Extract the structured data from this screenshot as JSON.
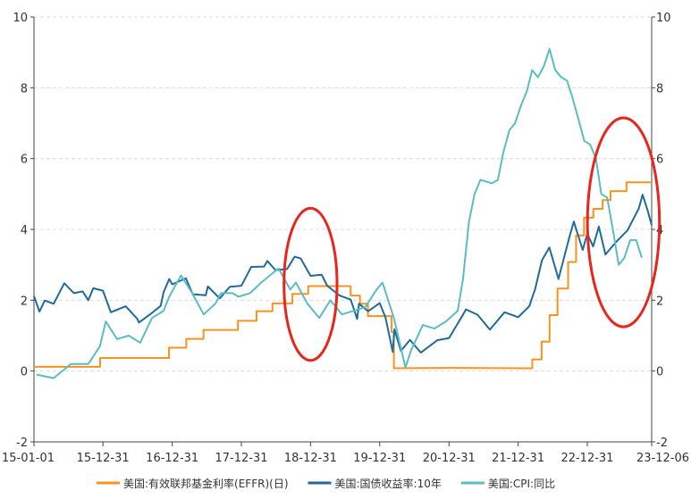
{
  "chart_data": {
    "type": "line",
    "title": "",
    "xlabel": "",
    "ylabel": "",
    "ylim": [
      -2,
      10
    ],
    "y_ticks": [
      -2,
      0,
      2,
      4,
      6,
      8,
      10
    ],
    "y_tick_labels": [
      "-2",
      "0",
      "2",
      "4",
      "6",
      "8",
      "10"
    ],
    "secondary_y_ticks": [
      -2,
      0,
      2,
      4,
      6,
      8,
      10
    ],
    "secondary_y_tick_labels": [
      "-2",
      "0",
      "2",
      "4",
      "6",
      "8",
      "10"
    ],
    "x_tick_labels": [
      "15-01-01",
      "15-12-31",
      "16-12-31",
      "17-12-31",
      "18-12-31",
      "19-12-31",
      "20-12-31",
      "21-12-31",
      "22-12-31",
      "23-12-06"
    ],
    "x_ticks": [
      "2015-01-01",
      "2015-12-31",
      "2016-12-31",
      "2017-12-31",
      "2018-12-31",
      "2019-12-31",
      "2020-12-31",
      "2021-12-31",
      "2022-12-31",
      "2023-12-06"
    ],
    "x_range": [
      "2015-01-01",
      "2023-12-06"
    ],
    "grid": "horizontal dashed",
    "legend_position": "bottom",
    "series": [
      {
        "name": "美国:有效联邦基金利率(EFFR)(日)",
        "color": "#f7931e",
        "style": "step",
        "points": [
          [
            "2015-01-01",
            0.12
          ],
          [
            "2015-12-16",
            0.12
          ],
          [
            "2015-12-16",
            0.37
          ],
          [
            "2016-12-14",
            0.37
          ],
          [
            "2016-12-14",
            0.66
          ],
          [
            "2017-03-15",
            0.66
          ],
          [
            "2017-03-15",
            0.91
          ],
          [
            "2017-06-14",
            0.91
          ],
          [
            "2017-06-14",
            1.16
          ],
          [
            "2017-12-13",
            1.16
          ],
          [
            "2017-12-13",
            1.42
          ],
          [
            "2018-03-21",
            1.42
          ],
          [
            "2018-03-21",
            1.69
          ],
          [
            "2018-06-13",
            1.69
          ],
          [
            "2018-06-13",
            1.91
          ],
          [
            "2018-09-26",
            1.91
          ],
          [
            "2018-09-26",
            2.18
          ],
          [
            "2018-12-19",
            2.18
          ],
          [
            "2018-12-19",
            2.4
          ],
          [
            "2019-07-31",
            2.4
          ],
          [
            "2019-07-31",
            2.13
          ],
          [
            "2019-09-18",
            2.13
          ],
          [
            "2019-09-18",
            1.9
          ],
          [
            "2019-10-30",
            1.9
          ],
          [
            "2019-10-30",
            1.55
          ],
          [
            "2020-03-03",
            1.55
          ],
          [
            "2020-03-03",
            1.1
          ],
          [
            "2020-03-15",
            1.1
          ],
          [
            "2020-03-15",
            0.08
          ],
          [
            "2020-12-31",
            0.09
          ],
          [
            "2021-12-31",
            0.08
          ],
          [
            "2022-03-16",
            0.08
          ],
          [
            "2022-03-16",
            0.33
          ],
          [
            "2022-05-04",
            0.33
          ],
          [
            "2022-05-04",
            0.83
          ],
          [
            "2022-06-15",
            0.83
          ],
          [
            "2022-06-15",
            1.58
          ],
          [
            "2022-07-27",
            1.58
          ],
          [
            "2022-07-27",
            2.33
          ],
          [
            "2022-09-21",
            2.33
          ],
          [
            "2022-09-21",
            3.08
          ],
          [
            "2022-11-02",
            3.08
          ],
          [
            "2022-11-02",
            3.83
          ],
          [
            "2022-12-14",
            3.83
          ],
          [
            "2022-12-14",
            4.33
          ],
          [
            "2023-02-01",
            4.33
          ],
          [
            "2023-02-01",
            4.58
          ],
          [
            "2023-03-22",
            4.58
          ],
          [
            "2023-03-22",
            4.83
          ],
          [
            "2023-05-03",
            4.83
          ],
          [
            "2023-05-03",
            5.08
          ],
          [
            "2023-07-26",
            5.08
          ],
          [
            "2023-07-26",
            5.33
          ],
          [
            "2023-12-06",
            5.33
          ]
        ]
      },
      {
        "name": "美国:国债收益率:10年",
        "color": "#1f6b9a",
        "style": "line",
        "points": [
          [
            "2015-01-01",
            2.12
          ],
          [
            "2015-01-30",
            1.68
          ],
          [
            "2015-02-27",
            1.99
          ],
          [
            "2015-04-15",
            1.9
          ],
          [
            "2015-06-10",
            2.48
          ],
          [
            "2015-07-31",
            2.2
          ],
          [
            "2015-09-15",
            2.25
          ],
          [
            "2015-10-15",
            2.0
          ],
          [
            "2015-11-10",
            2.34
          ],
          [
            "2015-12-31",
            2.27
          ],
          [
            "2016-02-11",
            1.66
          ],
          [
            "2016-04-29",
            1.83
          ],
          [
            "2016-06-30",
            1.47
          ],
          [
            "2016-07-08",
            1.37
          ],
          [
            "2016-08-31",
            1.58
          ],
          [
            "2016-10-31",
            1.84
          ],
          [
            "2016-11-15",
            2.22
          ],
          [
            "2016-12-15",
            2.6
          ],
          [
            "2016-12-31",
            2.45
          ],
          [
            "2017-03-13",
            2.62
          ],
          [
            "2017-04-18",
            2.17
          ],
          [
            "2017-06-26",
            2.14
          ],
          [
            "2017-07-07",
            2.39
          ],
          [
            "2017-09-08",
            2.05
          ],
          [
            "2017-10-31",
            2.38
          ],
          [
            "2017-12-31",
            2.41
          ],
          [
            "2018-02-21",
            2.94
          ],
          [
            "2018-04-30",
            2.95
          ],
          [
            "2018-05-17",
            3.11
          ],
          [
            "2018-06-29",
            2.85
          ],
          [
            "2018-08-29",
            2.88
          ],
          [
            "2018-10-08",
            3.23
          ],
          [
            "2018-11-09",
            3.18
          ],
          [
            "2018-12-31",
            2.69
          ],
          [
            "2019-02-28",
            2.72
          ],
          [
            "2019-03-29",
            2.41
          ],
          [
            "2019-05-31",
            2.14
          ],
          [
            "2019-07-31",
            2.02
          ],
          [
            "2019-09-03",
            1.47
          ],
          [
            "2019-09-13",
            1.9
          ],
          [
            "2019-10-31",
            1.69
          ],
          [
            "2019-12-31",
            1.92
          ],
          [
            "2020-01-31",
            1.51
          ],
          [
            "2020-03-09",
            0.54
          ],
          [
            "2020-03-18",
            1.18
          ],
          [
            "2020-04-21",
            0.57
          ],
          [
            "2020-06-08",
            0.88
          ],
          [
            "2020-08-04",
            0.52
          ],
          [
            "2020-10-30",
            0.87
          ],
          [
            "2020-12-31",
            0.93
          ],
          [
            "2021-02-26",
            1.44
          ],
          [
            "2021-03-31",
            1.74
          ],
          [
            "2021-05-31",
            1.59
          ],
          [
            "2021-08-04",
            1.17
          ],
          [
            "2021-10-20",
            1.66
          ],
          [
            "2021-12-31",
            1.52
          ],
          [
            "2022-02-28",
            1.83
          ],
          [
            "2022-03-31",
            2.32
          ],
          [
            "2022-05-06",
            3.13
          ],
          [
            "2022-06-14",
            3.49
          ],
          [
            "2022-08-01",
            2.6
          ],
          [
            "2022-09-30",
            3.83
          ],
          [
            "2022-10-21",
            4.22
          ],
          [
            "2022-12-07",
            3.42
          ],
          [
            "2022-12-31",
            3.88
          ],
          [
            "2023-01-31",
            3.52
          ],
          [
            "2023-03-02",
            4.08
          ],
          [
            "2023-04-06",
            3.29
          ],
          [
            "2023-05-31",
            3.64
          ],
          [
            "2023-07-31",
            3.97
          ],
          [
            "2023-09-29",
            4.59
          ],
          [
            "2023-10-19",
            4.98
          ],
          [
            "2023-11-15",
            4.53
          ],
          [
            "2023-12-06",
            4.12
          ]
        ]
      },
      {
        "name": "美国:CPI:同比",
        "color": "#5bbcc4",
        "style": "line",
        "points": [
          [
            "2015-01-15",
            -0.1
          ],
          [
            "2015-04-15",
            -0.2
          ],
          [
            "2015-07-15",
            0.2
          ],
          [
            "2015-10-15",
            0.2
          ],
          [
            "2015-12-15",
            0.7
          ],
          [
            "2016-01-15",
            1.4
          ],
          [
            "2016-03-15",
            0.9
          ],
          [
            "2016-05-15",
            1.0
          ],
          [
            "2016-07-15",
            0.8
          ],
          [
            "2016-09-15",
            1.5
          ],
          [
            "2016-11-15",
            1.7
          ],
          [
            "2016-12-15",
            2.1
          ],
          [
            "2017-02-15",
            2.7
          ],
          [
            "2017-04-15",
            2.2
          ],
          [
            "2017-06-15",
            1.6
          ],
          [
            "2017-08-15",
            1.9
          ],
          [
            "2017-09-15",
            2.2
          ],
          [
            "2017-11-15",
            2.2
          ],
          [
            "2017-12-15",
            2.1
          ],
          [
            "2018-02-15",
            2.2
          ],
          [
            "2018-04-15",
            2.5
          ],
          [
            "2018-07-15",
            2.9
          ],
          [
            "2018-09-15",
            2.3
          ],
          [
            "2018-10-15",
            2.5
          ],
          [
            "2018-12-15",
            1.9
          ],
          [
            "2019-02-15",
            1.5
          ],
          [
            "2019-04-15",
            2.0
          ],
          [
            "2019-06-15",
            1.6
          ],
          [
            "2019-08-15",
            1.7
          ],
          [
            "2019-10-15",
            1.8
          ],
          [
            "2019-12-15",
            2.3
          ],
          [
            "2020-01-15",
            2.5
          ],
          [
            "2020-03-15",
            1.5
          ],
          [
            "2020-05-15",
            0.1
          ],
          [
            "2020-06-15",
            0.6
          ],
          [
            "2020-08-15",
            1.3
          ],
          [
            "2020-10-15",
            1.2
          ],
          [
            "2020-12-15",
            1.4
          ],
          [
            "2021-02-15",
            1.7
          ],
          [
            "2021-03-15",
            2.6
          ],
          [
            "2021-04-15",
            4.2
          ],
          [
            "2021-05-15",
            5.0
          ],
          [
            "2021-06-15",
            5.4
          ],
          [
            "2021-08-15",
            5.3
          ],
          [
            "2021-09-15",
            5.4
          ],
          [
            "2021-10-15",
            6.2
          ],
          [
            "2021-11-15",
            6.8
          ],
          [
            "2021-12-15",
            7.0
          ],
          [
            "2022-01-15",
            7.5
          ],
          [
            "2022-02-15",
            7.9
          ],
          [
            "2022-03-15",
            8.5
          ],
          [
            "2022-04-15",
            8.3
          ],
          [
            "2022-05-15",
            8.6
          ],
          [
            "2022-06-15",
            9.1
          ],
          [
            "2022-07-15",
            8.5
          ],
          [
            "2022-08-15",
            8.3
          ],
          [
            "2022-09-15",
            8.2
          ],
          [
            "2022-10-15",
            7.7
          ],
          [
            "2022-11-15",
            7.1
          ],
          [
            "2022-12-15",
            6.5
          ],
          [
            "2023-01-15",
            6.4
          ],
          [
            "2023-02-15",
            6.0
          ],
          [
            "2023-03-15",
            5.0
          ],
          [
            "2023-04-15",
            4.9
          ],
          [
            "2023-05-15",
            4.0
          ],
          [
            "2023-06-15",
            3.0
          ],
          [
            "2023-07-15",
            3.2
          ],
          [
            "2023-08-15",
            3.7
          ],
          [
            "2023-09-15",
            3.7
          ],
          [
            "2023-10-15",
            3.2
          ]
        ]
      }
    ],
    "annotations": [
      {
        "type": "ellipse",
        "color": "#e8261e",
        "center_x": "2018-12-31",
        "center_y": 2.45,
        "rx_days": 140,
        "ry": 4.3
      },
      {
        "type": "ellipse",
        "color": "#e8261e",
        "center_x": "2023-07-10",
        "center_y": 4.2,
        "rx_days": 190,
        "ry": 5.9
      }
    ]
  }
}
